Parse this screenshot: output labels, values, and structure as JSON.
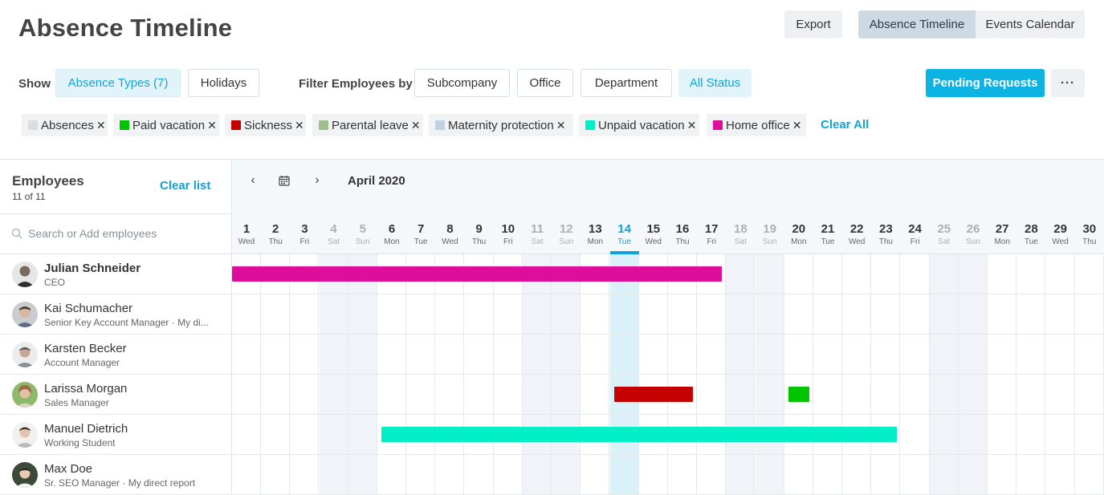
{
  "header": {
    "title": "Absence Timeline",
    "export_label": "Export",
    "view_toggle": [
      {
        "label": "Absence Timeline",
        "active": true
      },
      {
        "label": "Events Calendar",
        "active": false
      }
    ]
  },
  "filters": {
    "show_label": "Show",
    "absence_types_label": "Absence Types (7)",
    "holidays_label": "Holidays",
    "filter_by_label": "Filter Employees by",
    "subcompany_label": "Subcompany",
    "office_label": "Office",
    "department_label": "Department",
    "status_label": "All Status",
    "pending_label": "Pending Requests",
    "more_label": "···"
  },
  "chips": [
    {
      "label": "Absences",
      "color": "#dddddd"
    },
    {
      "label": "Paid vacation",
      "color": "#00c400"
    },
    {
      "label": "Sickness",
      "color": "#c40000"
    },
    {
      "label": "Parental leave",
      "color": "#9fbf8f"
    },
    {
      "label": "Maternity protection",
      "color": "#bfd2e4"
    },
    {
      "label": "Unpaid vacation",
      "color": "#00efc7"
    },
    {
      "label": "Home office",
      "color": "#dd0e9b"
    }
  ],
  "clear_all_label": "Clear All",
  "employees_panel": {
    "title": "Employees",
    "count": "11 of 11",
    "clear_list_label": "Clear list",
    "search_placeholder": "Search or Add employees"
  },
  "employees": [
    {
      "name": "Julian Schneider",
      "role": "CEO",
      "bold": true
    },
    {
      "name": "Kai Schumacher",
      "role": "Senior Key Account Manager · My di...",
      "bold": false
    },
    {
      "name": "Karsten Becker",
      "role": "Account Manager",
      "bold": false
    },
    {
      "name": "Larissa Morgan",
      "role": "Sales Manager",
      "bold": false
    },
    {
      "name": "Manuel Dietrich",
      "role": "Working Student",
      "bold": false
    },
    {
      "name": "Max Doe",
      "role": "Sr. SEO Manager · My direct report",
      "bold": false
    }
  ],
  "timeline": {
    "month": "April 2020",
    "prev_icon": "‹",
    "next_icon": "›",
    "today": 14,
    "days": [
      {
        "n": "1",
        "d": "Wed"
      },
      {
        "n": "2",
        "d": "Thu"
      },
      {
        "n": "3",
        "d": "Fri"
      },
      {
        "n": "4",
        "d": "Sat"
      },
      {
        "n": "5",
        "d": "Sun"
      },
      {
        "n": "6",
        "d": "Mon"
      },
      {
        "n": "7",
        "d": "Tue"
      },
      {
        "n": "8",
        "d": "Wed"
      },
      {
        "n": "9",
        "d": "Thu"
      },
      {
        "n": "10",
        "d": "Fri"
      },
      {
        "n": "11",
        "d": "Sat"
      },
      {
        "n": "12",
        "d": "Sun"
      },
      {
        "n": "13",
        "d": "Mon"
      },
      {
        "n": "14",
        "d": "Tue"
      },
      {
        "n": "15",
        "d": "Wed"
      },
      {
        "n": "16",
        "d": "Thu"
      },
      {
        "n": "17",
        "d": "Fri"
      },
      {
        "n": "18",
        "d": "Sat"
      },
      {
        "n": "19",
        "d": "Sun"
      },
      {
        "n": "20",
        "d": "Mon"
      },
      {
        "n": "21",
        "d": "Tue"
      },
      {
        "n": "22",
        "d": "Wed"
      },
      {
        "n": "23",
        "d": "Thu"
      },
      {
        "n": "24",
        "d": "Fri"
      },
      {
        "n": "25",
        "d": "Sat"
      },
      {
        "n": "26",
        "d": "Sun"
      },
      {
        "n": "27",
        "d": "Mon"
      },
      {
        "n": "28",
        "d": "Tue"
      },
      {
        "n": "29",
        "d": "Wed"
      },
      {
        "n": "30",
        "d": "Thu"
      }
    ],
    "absences": [
      {
        "employee": "Julian Schneider",
        "type": "Home office",
        "color": "#dd0e9b",
        "from_day": 1,
        "to_day": 17
      },
      {
        "employee": "Larissa Morgan",
        "type": "Sickness",
        "color": "#c40000",
        "from_day": 14,
        "to_day": 16
      },
      {
        "employee": "Larissa Morgan",
        "type": "Paid vacation",
        "color": "#00c400",
        "from_day": 20,
        "to_day": 20
      },
      {
        "employee": "Manuel Dietrich",
        "type": "Unpaid vacation",
        "color": "#00efc7",
        "from_day": 6,
        "to_day": 23
      }
    ]
  }
}
